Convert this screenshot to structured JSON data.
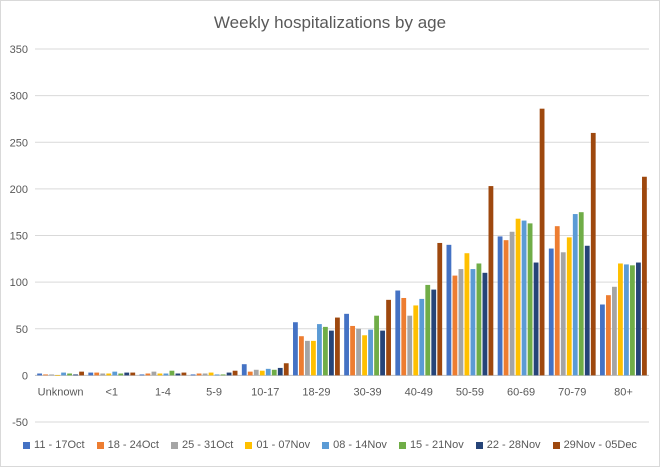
{
  "chart_data": {
    "type": "bar",
    "title": "Weekly hospitalizations by age",
    "xlabel": "",
    "ylabel": "",
    "ylim": [
      -50,
      350
    ],
    "yticks": [
      -50,
      0,
      50,
      100,
      150,
      200,
      250,
      300,
      350
    ],
    "grid": true,
    "legend_position": "bottom",
    "categories": [
      "Unknown",
      "<1",
      "1-4",
      "5-9",
      "10-17",
      "18-29",
      "30-39",
      "40-49",
      "50-59",
      "60-69",
      "70-79",
      "80+"
    ],
    "series": [
      {
        "name": "11 - 17Oct",
        "color": "#4472C4",
        "values": [
          2,
          3,
          1,
          1,
          12,
          57,
          66,
          91,
          140,
          149,
          136,
          76
        ]
      },
      {
        "name": "18 - 24Oct",
        "color": "#ED7D31",
        "values": [
          1,
          3,
          2,
          2,
          4,
          42,
          53,
          83,
          107,
          145,
          160,
          86
        ]
      },
      {
        "name": "25 - 31Oct",
        "color": "#A5A5A5",
        "values": [
          1,
          2,
          4,
          2,
          6,
          37,
          50,
          64,
          114,
          154,
          132,
          95
        ]
      },
      {
        "name": "01 - 07Nov",
        "color": "#FFC000",
        "values": [
          0,
          2,
          2,
          3,
          5,
          37,
          43,
          75,
          131,
          168,
          148,
          120
        ]
      },
      {
        "name": "08 - 14Nov",
        "color": "#5B9BD5",
        "values": [
          3,
          4,
          2,
          1,
          7,
          55,
          49,
          82,
          114,
          166,
          173,
          119
        ]
      },
      {
        "name": "15 - 21Nov",
        "color": "#70AD47",
        "values": [
          2,
          2,
          5,
          1,
          6,
          52,
          64,
          97,
          120,
          163,
          175,
          118
        ]
      },
      {
        "name": "22 - 28Nov",
        "color": "#264478",
        "values": [
          1,
          3,
          2,
          3,
          8,
          48,
          48,
          92,
          110,
          121,
          139,
          121
        ]
      },
      {
        "name": "29Nov - 05Dec",
        "color": "#9E480E",
        "values": [
          4,
          3,
          3,
          5,
          13,
          62,
          81,
          142,
          203,
          286,
          260,
          213
        ]
      }
    ]
  }
}
